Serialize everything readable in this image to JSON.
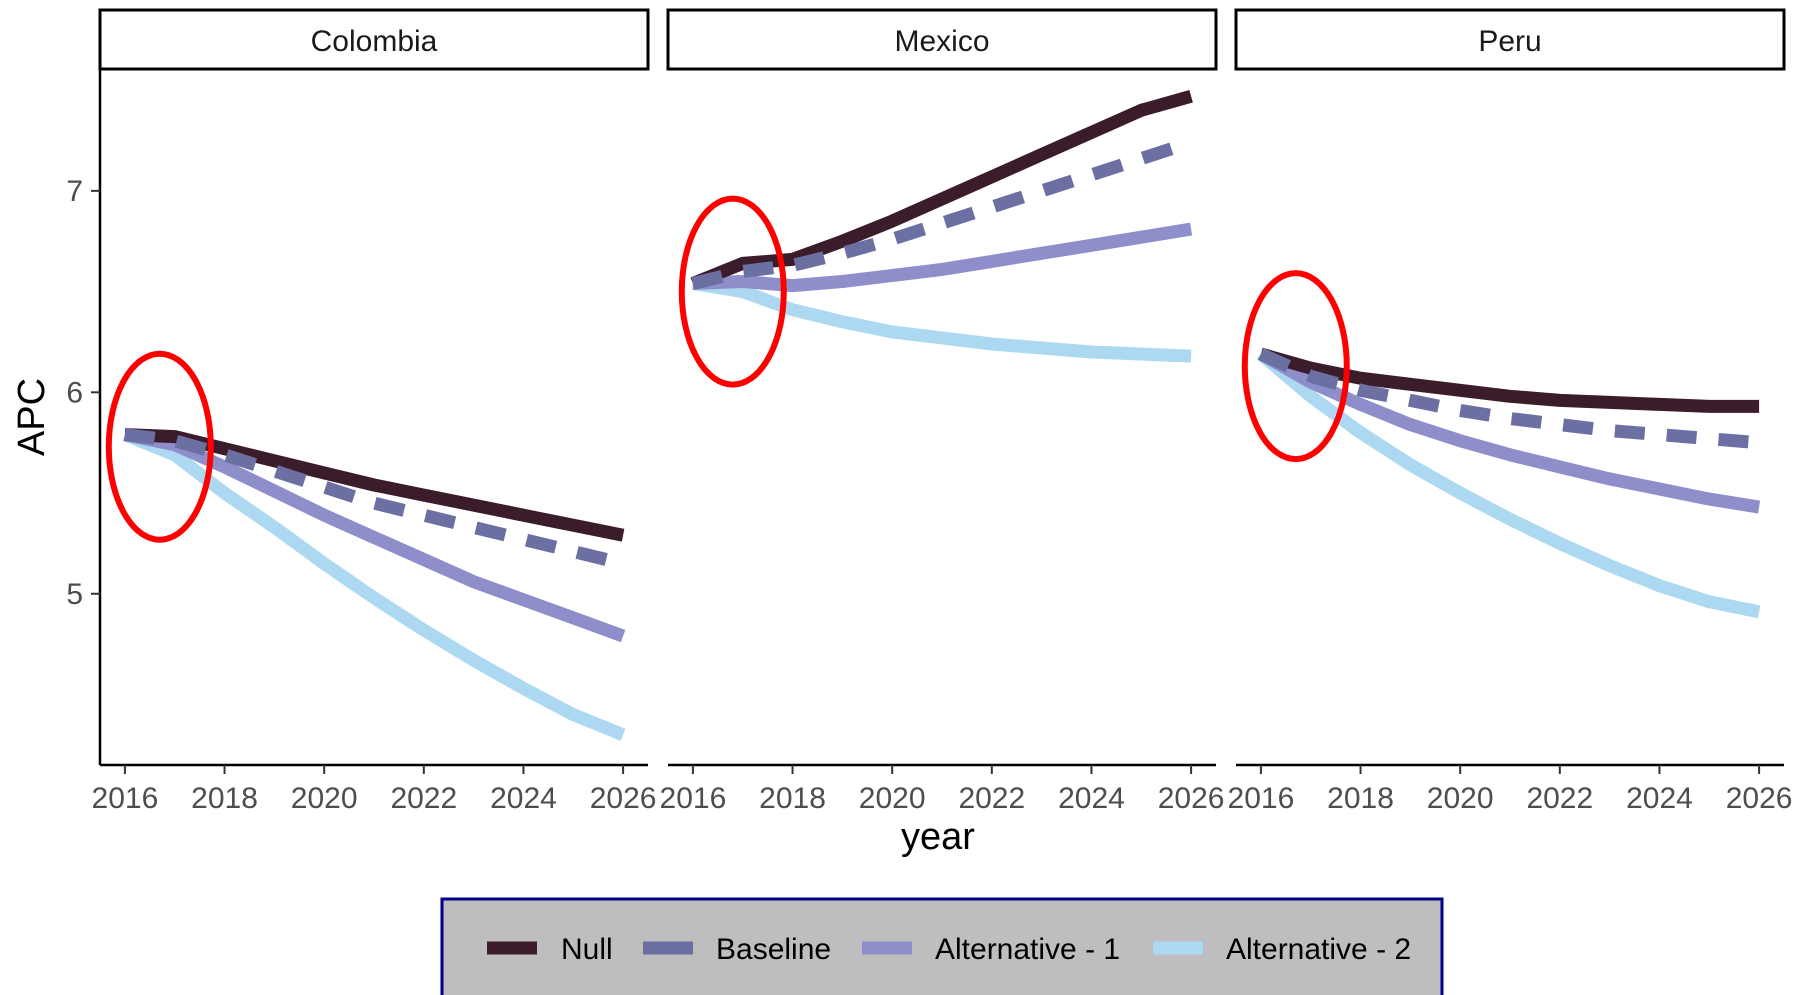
{
  "chart_data": {
    "type": "line",
    "xlabel": "year",
    "ylabel": "APC",
    "x_ticks": [
      "2016",
      "2018",
      "2020",
      "2022",
      "2024",
      "2026"
    ],
    "y_ticks": [
      "5",
      "6",
      "7"
    ],
    "xlim": [
      2015.5,
      2026.5
    ],
    "ylim": [
      4.15,
      7.6
    ],
    "grid": false,
    "legend_position": "bottom",
    "legend_background": "#bebebe",
    "legend_border": "#00008b",
    "x": [
      2016,
      2017,
      2018,
      2019,
      2020,
      2021,
      2022,
      2023,
      2024,
      2025,
      2026
    ],
    "series_styles": [
      {
        "name": "Null",
        "color": "#3b1c2b",
        "dash": "solid"
      },
      {
        "name": "Baseline",
        "color": "#6b6fa2",
        "dash": "dashed"
      },
      {
        "name": "Alternative - 1",
        "color": "#8e8fca",
        "dash": "solid"
      },
      {
        "name": "Alternative - 2",
        "color": "#acd9f1",
        "dash": "solid"
      }
    ],
    "highlight_color": "#ff0000",
    "panels": [
      {
        "strip": "Colombia",
        "series": [
          {
            "name": "Null",
            "values": [
              5.79,
              5.78,
              5.72,
              5.66,
              5.6,
              5.54,
              5.49,
              5.44,
              5.39,
              5.34,
              5.29
            ]
          },
          {
            "name": "Baseline",
            "values": [
              5.79,
              5.76,
              5.69,
              5.61,
              5.53,
              5.45,
              5.39,
              5.33,
              5.27,
              5.21,
              5.15
            ]
          },
          {
            "name": "Alternative - 1",
            "values": [
              5.79,
              5.74,
              5.63,
              5.51,
              5.39,
              5.28,
              5.17,
              5.06,
              4.97,
              4.88,
              4.79
            ]
          },
          {
            "name": "Alternative - 2",
            "values": [
              5.79,
              5.69,
              5.5,
              5.33,
              5.15,
              4.98,
              4.82,
              4.67,
              4.53,
              4.4,
              4.3
            ]
          }
        ],
        "highlight": {
          "x": 2016.7,
          "y": 5.73
        }
      },
      {
        "strip": "Mexico",
        "series": [
          {
            "name": "Null",
            "values": [
              6.54,
              6.64,
              6.66,
              6.75,
              6.85,
              6.96,
              7.07,
              7.18,
              7.29,
              7.4,
              7.47
            ]
          },
          {
            "name": "Baseline",
            "values": [
              6.54,
              6.6,
              6.63,
              6.69,
              6.76,
              6.84,
              6.92,
              7.0,
              7.08,
              7.16,
              7.24
            ]
          },
          {
            "name": "Alternative - 1",
            "values": [
              6.54,
              6.55,
              6.53,
              6.55,
              6.58,
              6.61,
              6.65,
              6.69,
              6.73,
              6.77,
              6.81
            ]
          },
          {
            "name": "Alternative - 2",
            "values": [
              6.54,
              6.5,
              6.41,
              6.35,
              6.3,
              6.27,
              6.24,
              6.22,
              6.2,
              6.19,
              6.18
            ]
          }
        ],
        "highlight": {
          "x": 2016.8,
          "y": 6.5
        }
      },
      {
        "strip": "Peru",
        "series": [
          {
            "name": "Null",
            "values": [
              6.19,
              6.12,
              6.07,
              6.04,
              6.01,
              5.98,
              5.96,
              5.95,
              5.94,
              5.93,
              5.93
            ]
          },
          {
            "name": "Baseline",
            "values": [
              6.19,
              6.08,
              6.01,
              5.96,
              5.91,
              5.87,
              5.84,
              5.81,
              5.79,
              5.77,
              5.75
            ]
          },
          {
            "name": "Alternative - 1",
            "values": [
              6.19,
              6.05,
              5.94,
              5.84,
              5.76,
              5.69,
              5.63,
              5.57,
              5.52,
              5.47,
              5.43
            ]
          },
          {
            "name": "Alternative - 2",
            "values": [
              6.19,
              5.98,
              5.8,
              5.64,
              5.5,
              5.37,
              5.25,
              5.14,
              5.04,
              4.96,
              4.91
            ]
          }
        ],
        "highlight": {
          "x": 2016.7,
          "y": 6.13
        }
      }
    ]
  }
}
